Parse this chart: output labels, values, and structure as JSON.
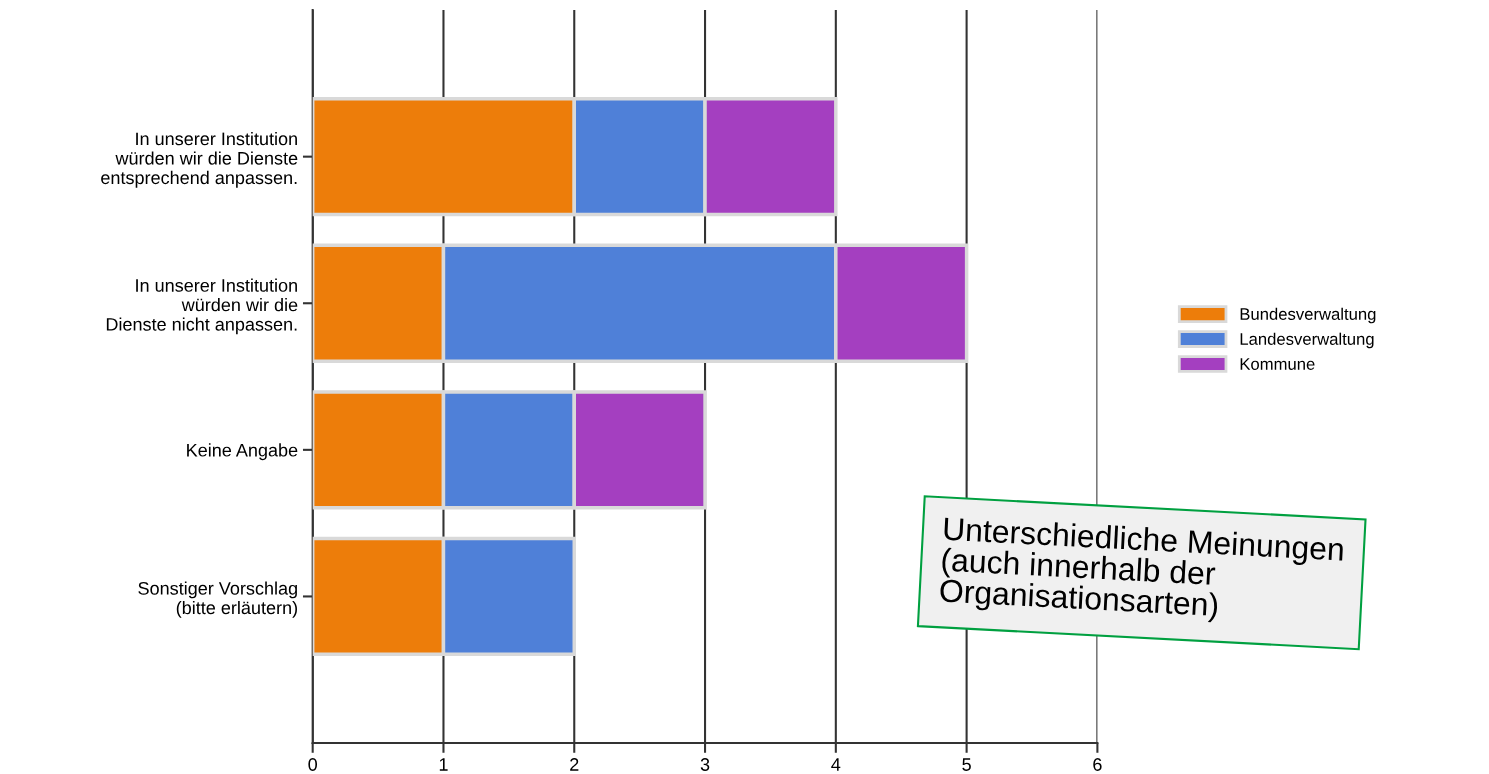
{
  "chart_data": {
    "type": "bar",
    "orientation": "horizontal",
    "stacked": true,
    "categories": [
      "In unserer Institution\nwürden wir die Dienste\nentsprechend anpassen.",
      "In unserer Institution\nwürden wir die\nDienste nicht anpassen.",
      "Keine Angabe",
      "Sonstiger Vorschlag\n(bitte erläutern)"
    ],
    "series": [
      {
        "name": "Bundesverwaltung",
        "color": "#ed7d0a",
        "values": [
          2,
          1,
          1,
          1
        ]
      },
      {
        "name": "Landesverwaltung",
        "color": "#4f80d8",
        "values": [
          1,
          3,
          1,
          1
        ]
      },
      {
        "name": "Kommune",
        "color": "#a43fc0",
        "values": [
          1,
          1,
          1,
          null
        ]
      }
    ],
    "xlim": [
      0,
      6
    ],
    "xticks": [
      0,
      1,
      2,
      3,
      4,
      5,
      6
    ],
    "grid": "x",
    "legend": "right",
    "annotations": [
      "Unterschiedliche Meinungen\n(auch innerhalb der\nOrganisationsarten)"
    ]
  }
}
